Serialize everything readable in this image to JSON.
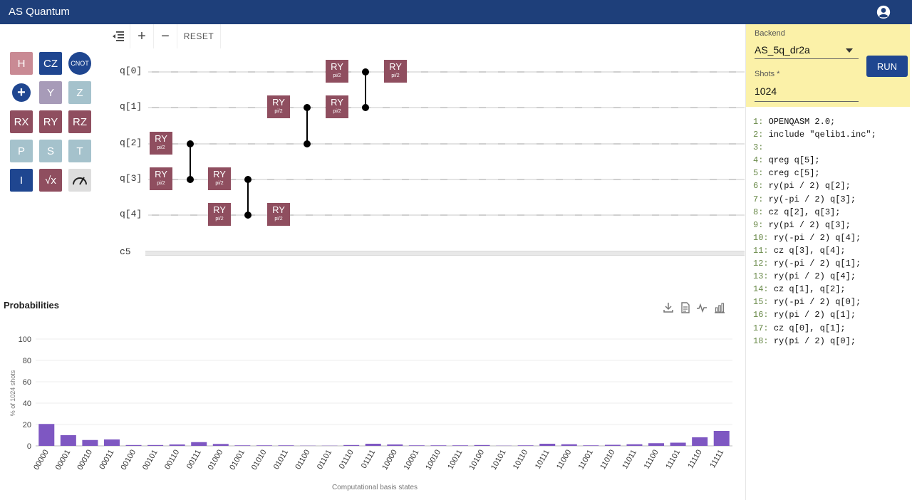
{
  "app": {
    "title": "AS Quantum"
  },
  "palette": {
    "gates": [
      {
        "label": "H",
        "color": "#c98a94"
      },
      {
        "label": "CZ",
        "color": "#1f4690"
      },
      {
        "label": "CNOT",
        "color": "#1f4690"
      },
      {
        "label": "+",
        "color": "#1f4690"
      },
      {
        "label": "Y",
        "color": "#a79bb8"
      },
      {
        "label": "Z",
        "color": "#a5c2cc"
      },
      {
        "label": "RX",
        "color": "#8f4e5f"
      },
      {
        "label": "RY",
        "color": "#8f4e5f"
      },
      {
        "label": "RZ",
        "color": "#8f4e5f"
      },
      {
        "label": "P",
        "color": "#a5c2cc"
      },
      {
        "label": "S",
        "color": "#a5c2cc"
      },
      {
        "label": "T",
        "color": "#a5c2cc"
      },
      {
        "label": "I",
        "color": "#1f4690"
      },
      {
        "label": "√x",
        "color": "#8f4e5f"
      },
      {
        "label": "measure",
        "color": "#dddddd"
      }
    ]
  },
  "toolbar": {
    "reset_label": "RESET"
  },
  "circuit": {
    "qubits": [
      "q[0]",
      "q[1]",
      "q[2]",
      "q[3]",
      "q[4]"
    ],
    "classical": "c5",
    "gate_name": "RY",
    "param": "pi/2"
  },
  "backend": {
    "backend_label": "Backend",
    "backend_value": "AS_5q_dr2a",
    "shots_label": "Shots *",
    "shots_value": "1024",
    "run_label": "RUN"
  },
  "code": [
    {
      "n": "1:",
      "t": "OPENQASM 2.0;"
    },
    {
      "n": "2:",
      "t": "include \"qelib1.inc\";"
    },
    {
      "n": "3:",
      "t": ""
    },
    {
      "n": "4:",
      "t": "qreg q[5];"
    },
    {
      "n": "5:",
      "t": "creg c[5];"
    },
    {
      "n": "6:",
      "t": "ry(pi / 2) q[2];"
    },
    {
      "n": "7:",
      "t": "ry(-pi / 2) q[3];"
    },
    {
      "n": "8:",
      "t": "cz q[2], q[3];"
    },
    {
      "n": "9:",
      "t": "ry(pi / 2) q[3];"
    },
    {
      "n": "10:",
      "t": "ry(-pi / 2) q[4];"
    },
    {
      "n": "11:",
      "t": "cz q[3], q[4];"
    },
    {
      "n": "12:",
      "t": "ry(-pi / 2) q[1];"
    },
    {
      "n": "13:",
      "t": "ry(pi / 2) q[4];"
    },
    {
      "n": "14:",
      "t": "cz q[1], q[2];"
    },
    {
      "n": "15:",
      "t": "ry(-pi / 2) q[0];"
    },
    {
      "n": "16:",
      "t": "ry(pi / 2) q[1];"
    },
    {
      "n": "17:",
      "t": "cz q[0], q[1];"
    },
    {
      "n": "18:",
      "t": "ry(pi / 2) q[0];"
    }
  ],
  "chart_title": "Probabilities",
  "chart_data": {
    "type": "bar",
    "categories": [
      "00000",
      "00001",
      "00010",
      "00011",
      "00100",
      "00101",
      "00110",
      "00111",
      "01000",
      "01001",
      "01010",
      "01011",
      "01100",
      "01101",
      "01110",
      "01111",
      "10000",
      "10001",
      "10010",
      "10011",
      "10100",
      "10101",
      "10110",
      "10111",
      "11000",
      "11001",
      "11010",
      "11011",
      "11100",
      "11101",
      "11110",
      "11111"
    ],
    "values": [
      20.5,
      10,
      5.5,
      6,
      0.8,
      0.8,
      1.3,
      3.5,
      1.8,
      0.5,
      0.5,
      0.5,
      0.2,
      0.2,
      0.8,
      2,
      1.3,
      0.5,
      0.5,
      0.5,
      0.8,
      0.2,
      0.5,
      2,
      1.5,
      0.5,
      1,
      1.5,
      2.5,
      3,
      8,
      14
    ],
    "xlabel": "Computational basis states",
    "ylabel": "% of 1024 shots",
    "ylim": [
      0,
      100
    ],
    "yticks": [
      0,
      20,
      40,
      60,
      80,
      100
    ],
    "bar_color": "#7e57c2",
    "grid": true
  }
}
